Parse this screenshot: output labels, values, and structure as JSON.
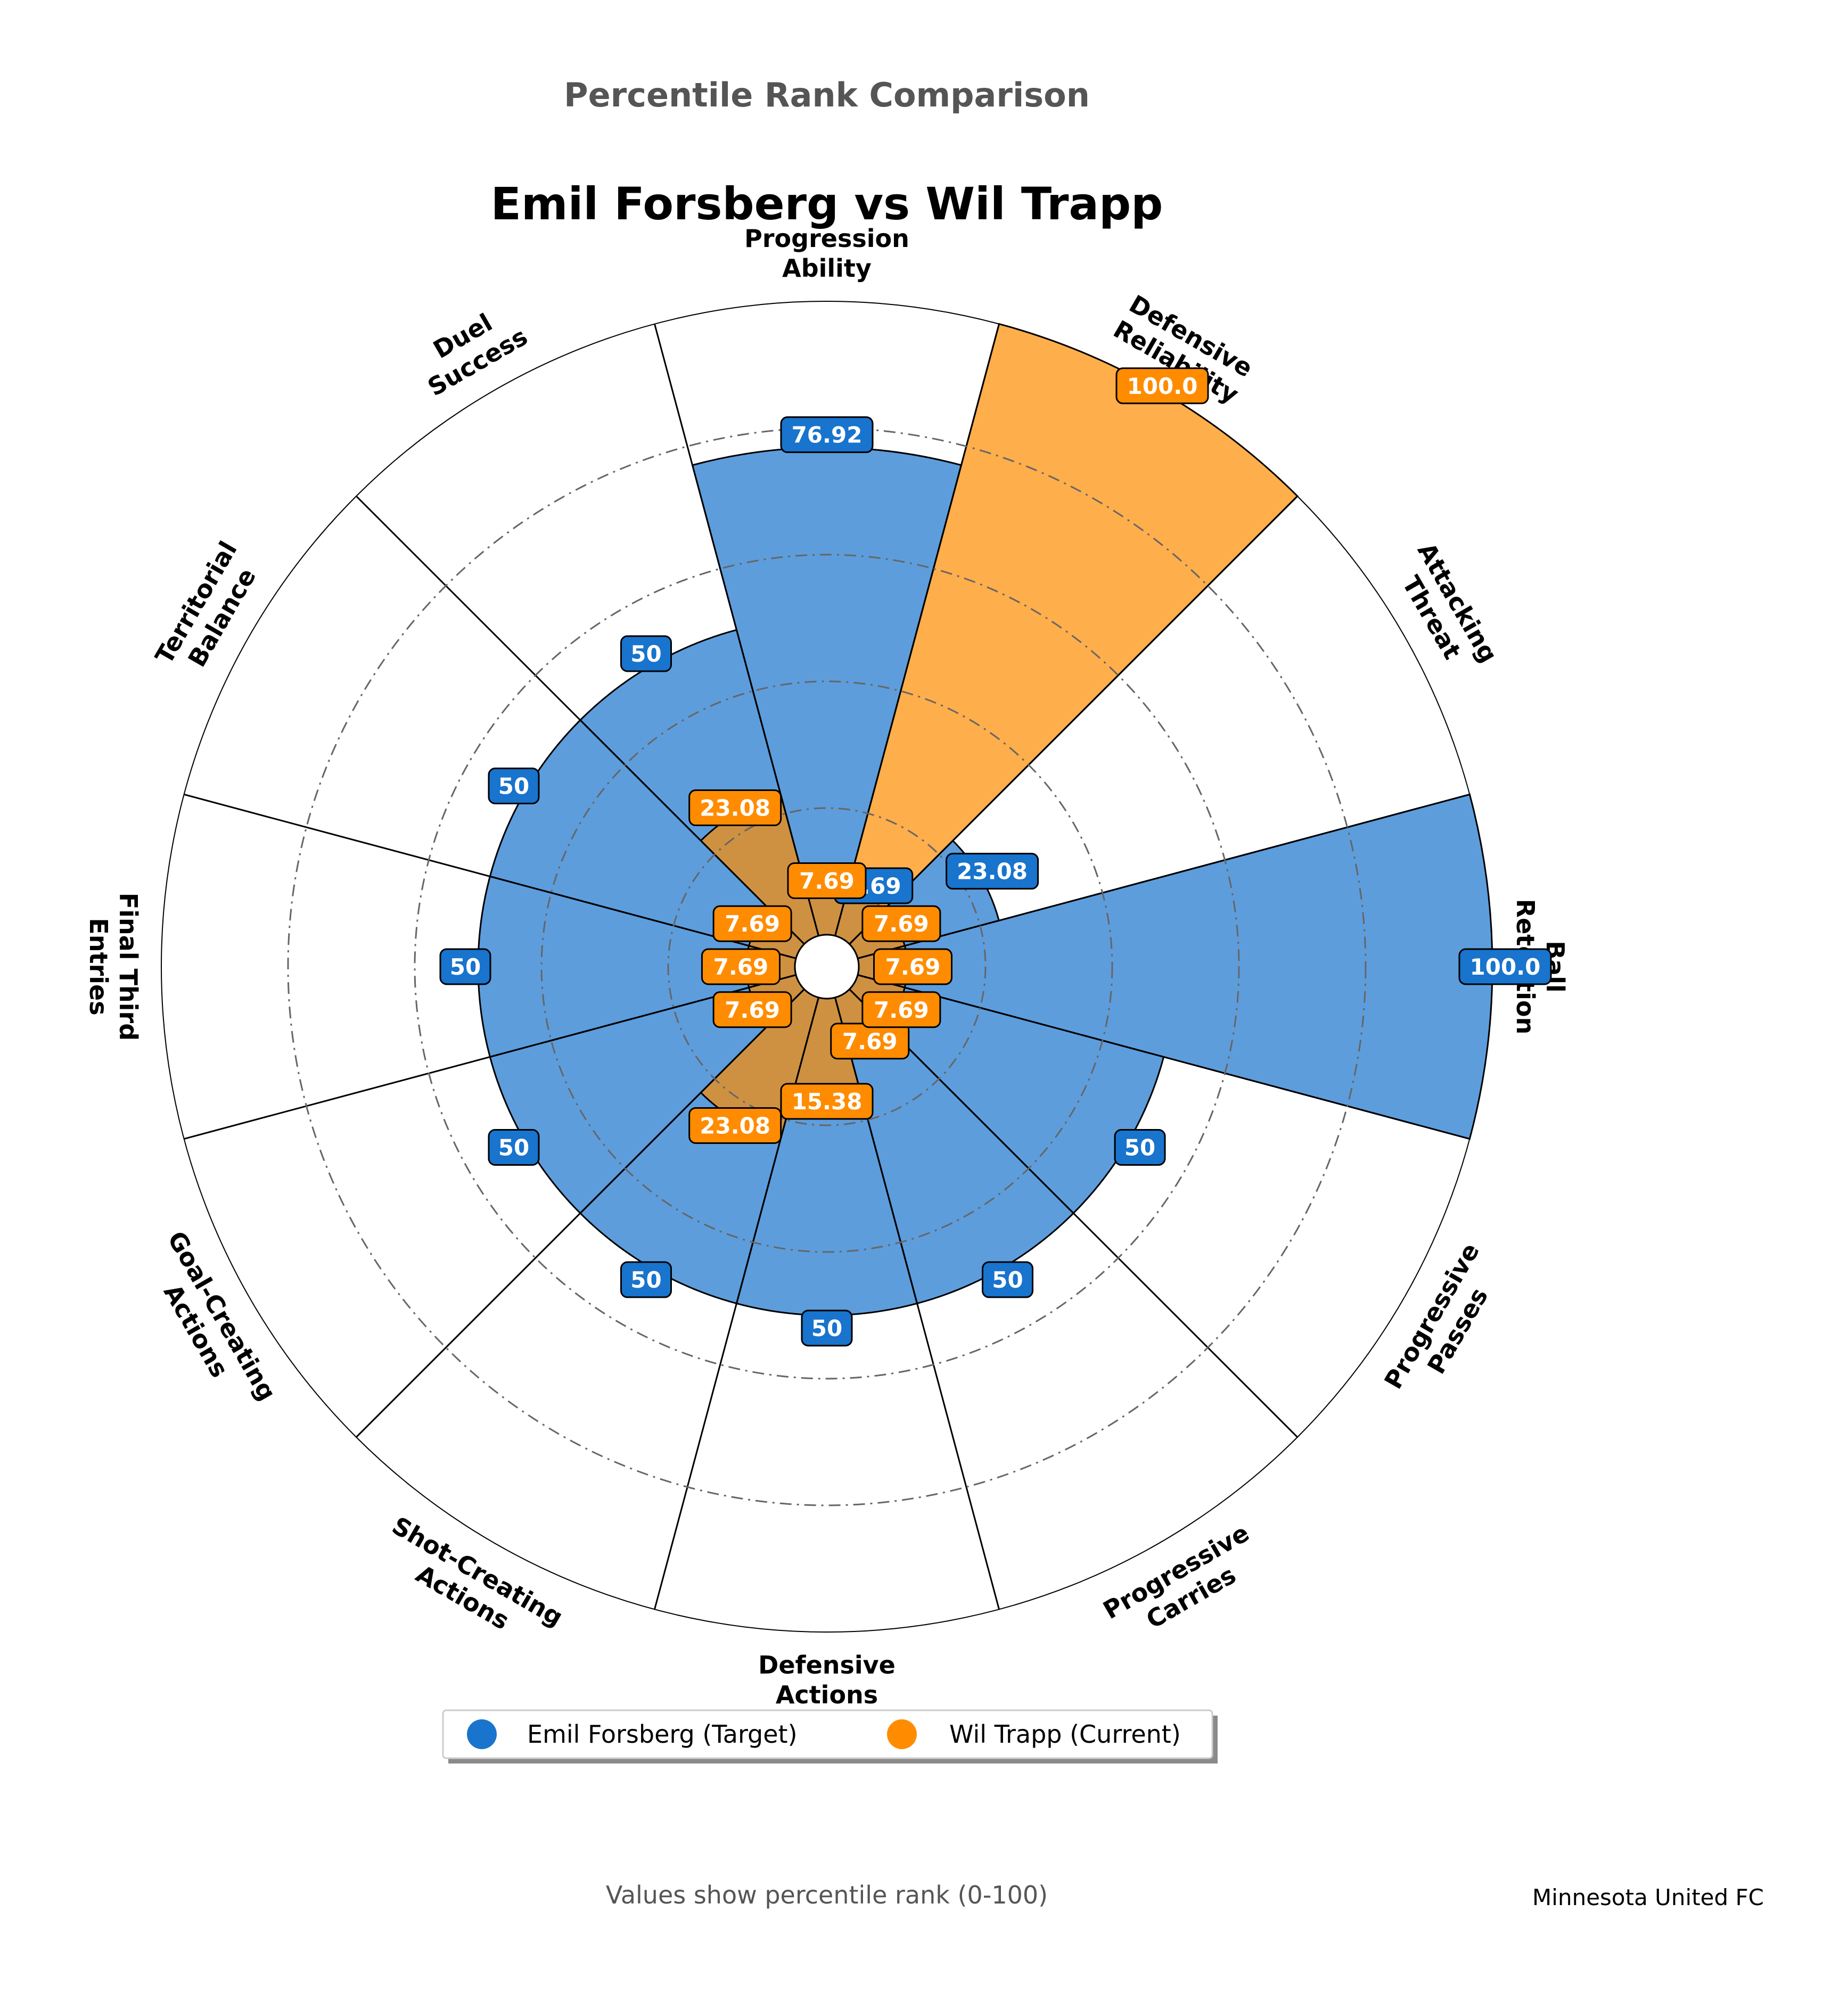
{
  "supertitle": "Percentile Rank Comparison",
  "footer": {
    "note": "Values show percentile rank (0-100)",
    "team": "Minnesota United FC"
  },
  "chart_data": {
    "type": "polar-bar",
    "title": "Emil Forsberg vs Wil Trapp",
    "rlim": [
      0,
      100
    ],
    "grid": true,
    "legend_position": "bottom-center",
    "categories": [
      "Ball\nRetention",
      "Attacking\nThreat",
      "Defensive\nReliability",
      "Progression\nAbility",
      "Duel\nSuccess",
      "Territorial\nBalance",
      "Final Third\nEntries",
      "Goal-Creating\nActions",
      "Shot-Creating\nActions",
      "Defensive\nActions",
      "Progressive\nCarries",
      "Progressive\nPasses"
    ],
    "series": [
      {
        "name": "Emil Forsberg (Target)",
        "color": "#1874cd",
        "values": [
          100.0,
          23.08,
          7.69,
          76.92,
          50,
          50,
          50,
          50,
          50,
          50,
          50,
          50
        ],
        "labels": [
          "100.0",
          "23.08",
          "7.69",
          "76.92",
          "50",
          "50",
          "50",
          "50",
          "50",
          "50",
          "50",
          "50"
        ]
      },
      {
        "name": "Wil Trapp (Current)",
        "color": "#ff8c00",
        "values": [
          7.69,
          7.69,
          100.0,
          7.69,
          23.08,
          7.69,
          7.69,
          7.69,
          23.08,
          15.38,
          7.69,
          7.69
        ],
        "labels": [
          "7.69",
          "7.69",
          "100.0",
          "7.69",
          "23.08",
          "7.69",
          "7.69",
          "7.69",
          "23.08",
          "15.38",
          "7.69",
          "7.69"
        ]
      }
    ]
  }
}
